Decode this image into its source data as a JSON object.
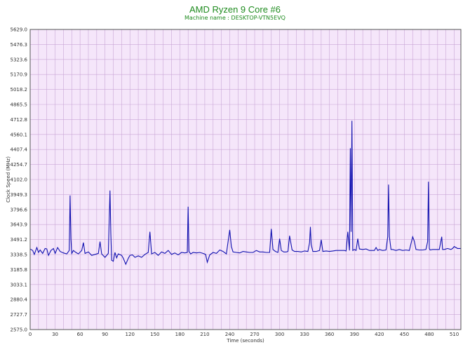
{
  "chart_data": {
    "type": "line",
    "title": "AMD Ryzen 9 Core #6",
    "subtitle": "Machine name : DESKTOP-VTN5EVQ",
    "xlabel": "Time (seconds)",
    "ylabel": "Clock Speed (MHz)",
    "xlim": [
      0,
      518
    ],
    "ylim": [
      2575.0,
      5629.0
    ],
    "x_ticks": [
      0,
      30,
      60,
      90,
      120,
      150,
      180,
      210,
      240,
      270,
      300,
      330,
      360,
      390,
      420,
      450,
      480,
      510
    ],
    "y_ticks": [
      "2575.0",
      "2727.7",
      "2880.4",
      "3033.1",
      "3185.8",
      "3338.5",
      "3491.2",
      "3643.9",
      "3796.6",
      "3949.3",
      "4102.0",
      "4254.7",
      "4407.4",
      "4560.1",
      "4712.8",
      "4865.5",
      "5018.2",
      "5170.9",
      "5323.6",
      "5476.3",
      "5629.0"
    ],
    "grid": true,
    "colors": {
      "background": "#f5e6fa",
      "grid": "#c9a6d6",
      "line": "#1010b0",
      "title": "#1e8b1e"
    },
    "series": [
      {
        "x": [
          0,
          3,
          5,
          8,
          10,
          12,
          15,
          18,
          20,
          22,
          25,
          28,
          30,
          33,
          36,
          40,
          44,
          47,
          48,
          49,
          50,
          52,
          55,
          58,
          62,
          64,
          66,
          70,
          74,
          78,
          82,
          84,
          86,
          90,
          94,
          96,
          97,
          98,
          100,
          102,
          104,
          106,
          110,
          112,
          115,
          118,
          120,
          123,
          126,
          130,
          134,
          138,
          142,
          144,
          146,
          150,
          154,
          158,
          162,
          166,
          170,
          174,
          178,
          182,
          186,
          189,
          190,
          191,
          193,
          196,
          200,
          204,
          208,
          211,
          213,
          216,
          220,
          224,
          228,
          232,
          236,
          240,
          242,
          244,
          248,
          252,
          256,
          260,
          264,
          268,
          272,
          276,
          280,
          284,
          288,
          290,
          291,
          292,
          295,
          298,
          300,
          302,
          305,
          308,
          310,
          312,
          315,
          318,
          322,
          326,
          330,
          334,
          336,
          337,
          338,
          340,
          344,
          348,
          350,
          352,
          356,
          360,
          364,
          368,
          372,
          376,
          378,
          380,
          382,
          384,
          385,
          386,
          387,
          388,
          390,
          392,
          394,
          396,
          400,
          404,
          408,
          412,
          414,
          416,
          418,
          420,
          424,
          428,
          430,
          431,
          432,
          434,
          436,
          440,
          444,
          448,
          452,
          456,
          460,
          462,
          464,
          468,
          472,
          476,
          478,
          479,
          480,
          481,
          484,
          488,
          492,
          495,
          496,
          498,
          502,
          506,
          508,
          510,
          514,
          518
        ],
        "y": [
          3395,
          3380,
          3340,
          3410,
          3360,
          3385,
          3350,
          3400,
          3395,
          3330,
          3380,
          3400,
          3350,
          3410,
          3370,
          3355,
          3345,
          3380,
          3940,
          3500,
          3350,
          3380,
          3360,
          3345,
          3380,
          3460,
          3350,
          3365,
          3330,
          3340,
          3350,
          3470,
          3345,
          3310,
          3350,
          3990,
          3550,
          3280,
          3270,
          3360,
          3305,
          3345,
          3330,
          3300,
          3240,
          3300,
          3330,
          3335,
          3310,
          3325,
          3310,
          3340,
          3360,
          3570,
          3345,
          3360,
          3330,
          3365,
          3350,
          3380,
          3340,
          3355,
          3335,
          3360,
          3355,
          3360,
          3825,
          3370,
          3345,
          3360,
          3355,
          3360,
          3350,
          3340,
          3260,
          3335,
          3360,
          3350,
          3385,
          3370,
          3345,
          3590,
          3420,
          3365,
          3360,
          3355,
          3370,
          3365,
          3360,
          3360,
          3380,
          3365,
          3365,
          3360,
          3360,
          3600,
          3500,
          3390,
          3370,
          3360,
          3500,
          3380,
          3365,
          3365,
          3370,
          3530,
          3385,
          3370,
          3370,
          3365,
          3375,
          3370,
          3460,
          3620,
          3440,
          3370,
          3370,
          3380,
          3490,
          3370,
          3375,
          3370,
          3375,
          3380,
          3380,
          3380,
          3380,
          3375,
          3570,
          3380,
          4420,
          3570,
          4700,
          3380,
          3390,
          3380,
          3500,
          3395,
          3390,
          3395,
          3380,
          3380,
          3380,
          3410,
          3380,
          3390,
          3380,
          3385,
          3520,
          4050,
          3520,
          3390,
          3390,
          3380,
          3390,
          3380,
          3385,
          3380,
          3520,
          3475,
          3390,
          3385,
          3385,
          3390,
          3470,
          4080,
          3400,
          3385,
          3390,
          3390,
          3390,
          3520,
          3390,
          3390,
          3400,
          3390,
          3400,
          3420,
          3400,
          3400
        ]
      }
    ]
  }
}
